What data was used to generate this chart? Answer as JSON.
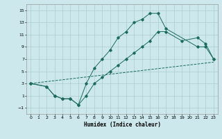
{
  "xlabel": "Humidex (Indice chaleur)",
  "background_color": "#cce8ec",
  "grid_color": "#aacccc",
  "line_color": "#1a6b5a",
  "xlim": [
    -0.5,
    23.5
  ],
  "ylim": [
    -2,
    16
  ],
  "xticks": [
    0,
    1,
    2,
    3,
    4,
    5,
    6,
    7,
    8,
    9,
    10,
    11,
    12,
    13,
    14,
    15,
    16,
    17,
    18,
    19,
    20,
    21,
    22,
    23
  ],
  "yticks": [
    -1,
    1,
    3,
    5,
    7,
    9,
    11,
    13,
    15
  ],
  "line1_x": [
    0,
    2,
    3,
    4,
    5,
    6,
    7,
    8,
    9,
    10,
    11,
    12,
    13,
    14,
    15,
    16,
    17,
    21,
    22,
    23
  ],
  "line1_y": [
    3,
    2.5,
    1,
    0.5,
    0.5,
    -0.5,
    3,
    5.5,
    7,
    8.5,
    10.5,
    11.5,
    13,
    13.5,
    14.5,
    14.5,
    12,
    9,
    9,
    7
  ],
  "line2_x": [
    0,
    2,
    3,
    4,
    5,
    6,
    7,
    8,
    9,
    10,
    11,
    12,
    13,
    14,
    15,
    16,
    17,
    19,
    21,
    22,
    23
  ],
  "line2_y": [
    3,
    2.5,
    1,
    0.5,
    0.5,
    -0.5,
    1,
    3,
    4,
    5,
    6,
    7,
    8,
    9,
    10,
    11.5,
    11.5,
    10,
    10.5,
    9.5,
    7
  ],
  "line3_x": [
    0,
    23
  ],
  "line3_y": [
    3,
    6.5
  ]
}
